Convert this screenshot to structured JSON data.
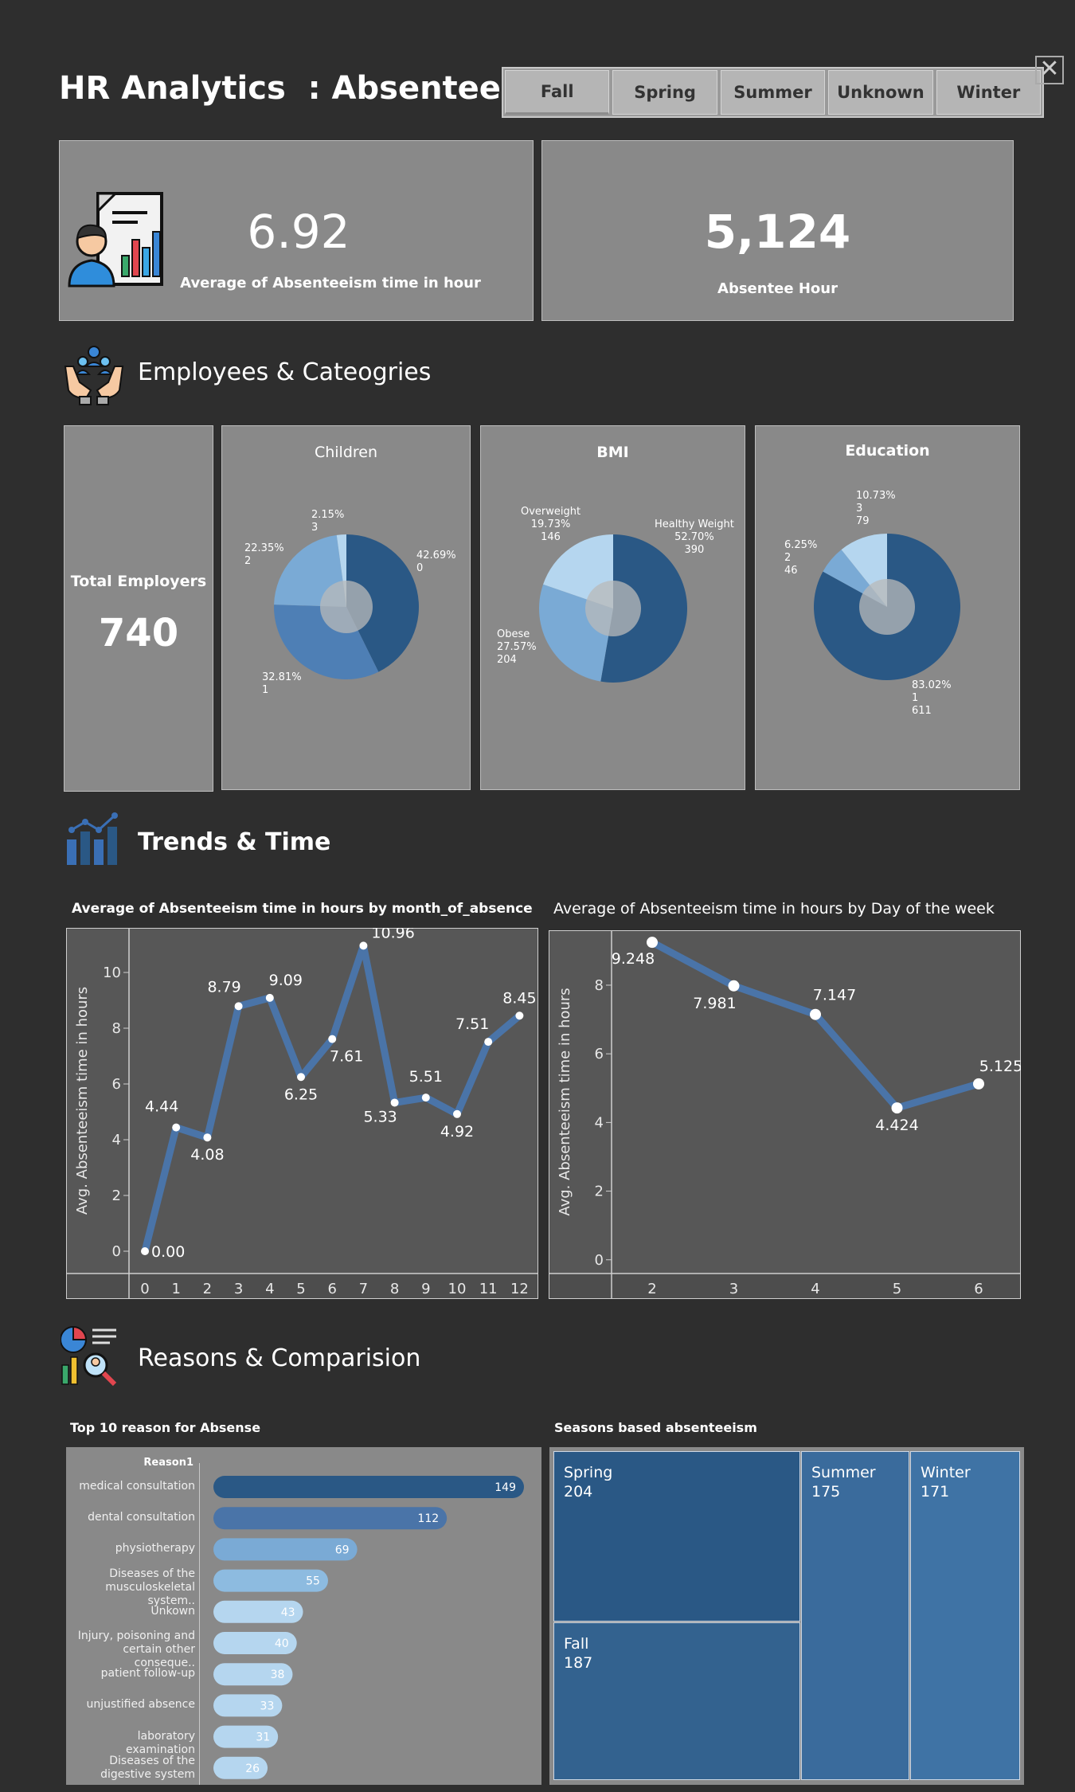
{
  "header": {
    "title": "HR Analytics  : Absenteesim",
    "close_label": "✕"
  },
  "season_filter": [
    "Fall",
    "Spring",
    "Summer",
    "Unknown",
    "Winter"
  ],
  "kpis": {
    "avg_value": "6.92",
    "avg_label": "Average of Absenteeism time in hour",
    "hours_value": "5,124",
    "hours_label": "Absentee Hour"
  },
  "sections": {
    "employees": "Employees & Cateogries",
    "trends": "Trends & Time",
    "reasons": "Reasons & Comparision"
  },
  "total_employers": {
    "label": "Total Employers",
    "value": "740"
  },
  "colors": {
    "dark": "#2a5885",
    "mid": "#4e7fb5",
    "light": "#7aaad5",
    "pale": "#b5d6ef",
    "bg": "#2e2e2e",
    "panel": "#898989",
    "plot": "#575757",
    "line": "#4a74a8"
  },
  "chart_data": [
    {
      "type": "pie",
      "title": "Children",
      "slices": [
        {
          "label": "0",
          "percent": 42.69
        },
        {
          "label": "1",
          "percent": 32.81
        },
        {
          "label": "2",
          "percent": 22.35
        },
        {
          "label": "3",
          "percent": 2.15
        }
      ],
      "labels": [
        "42.69%\n0",
        "32.81%\n1",
        "22.35%\n2",
        "2.15%\n3"
      ]
    },
    {
      "type": "pie",
      "title": "BMI",
      "slices": [
        {
          "label": "Healthy Weight",
          "percent": 52.7,
          "count": 390
        },
        {
          "label": "Obese",
          "percent": 27.57,
          "count": 204
        },
        {
          "label": "Overweight",
          "percent": 19.73,
          "count": 146
        }
      ],
      "labels": [
        "Healthy Weight\n52.70%\n390",
        "Obese\n27.57%\n204",
        "Overweight\n19.73%\n146"
      ]
    },
    {
      "type": "pie",
      "title": "Education",
      "slices": [
        {
          "label": "1",
          "percent": 83.02,
          "count": 611
        },
        {
          "label": "2",
          "percent": 6.25,
          "count": 46
        },
        {
          "label": "3",
          "percent": 10.73,
          "count": 79
        }
      ],
      "labels": [
        "83.02%\n1\n611",
        "6.25%\n2\n46",
        "10.73%\n3\n79"
      ]
    },
    {
      "type": "line",
      "title": "Average of Absenteeism time in hours by month_of_absence",
      "ylabel": "Avg. Absenteeism time in hours",
      "ylim": [
        -0.8,
        11.6
      ],
      "yticks": [
        0,
        2,
        4,
        6,
        8,
        10
      ],
      "x": [
        0,
        1,
        2,
        3,
        4,
        5,
        6,
        7,
        8,
        9,
        10,
        11,
        12
      ],
      "values": [
        0.0,
        4.44,
        4.08,
        8.79,
        9.09,
        6.25,
        7.61,
        10.96,
        5.33,
        5.51,
        4.92,
        7.51,
        8.45
      ],
      "value_labels": [
        "0.00",
        "4.44",
        "4.08",
        "8.79",
        "9.09",
        "6.25",
        "7.61",
        "10.96",
        "5.33",
        "5.51",
        "4.92",
        "7.51",
        "8.45"
      ]
    },
    {
      "type": "line",
      "title": "Average of Absenteeism time in hours by Day of the week",
      "ylabel": "Avg. Absenteeism time in hours",
      "ylim": [
        -0.4,
        9.6
      ],
      "yticks": [
        0,
        2,
        4,
        6,
        8
      ],
      "x": [
        2,
        3,
        4,
        5,
        6
      ],
      "values": [
        9.248,
        7.981,
        7.147,
        4.424,
        5.125
      ],
      "value_labels": [
        "9.248",
        "7.981",
        "7.147",
        "4.424",
        "5.125"
      ]
    },
    {
      "type": "bar",
      "title": "Top 10 reason for Absense",
      "header": "Reason1",
      "categories": [
        "medical consultation",
        "dental consultation",
        "physiotherapy",
        "Diseases of the musculoskeletal system..",
        "Unkown",
        "Injury, poisoning and certain other conseque..",
        "patient follow-up",
        "unjustified absence",
        "laboratory examination",
        "Diseases of the digestive system"
      ],
      "values": [
        149,
        112,
        69,
        55,
        43,
        40,
        38,
        33,
        31,
        26
      ]
    },
    {
      "type": "treemap",
      "title": "Seasons based absenteeism",
      "items": [
        {
          "label": "Spring",
          "value": 204
        },
        {
          "label": "Fall",
          "value": 187
        },
        {
          "label": "Summer",
          "value": 175
        },
        {
          "label": "Winter",
          "value": 171
        }
      ]
    }
  ]
}
